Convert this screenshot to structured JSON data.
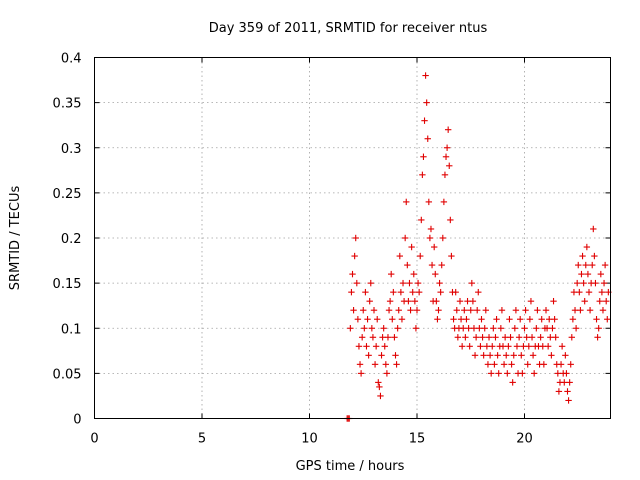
{
  "chart_data": {
    "type": "scatter",
    "title": "Day 359 of 2011, SRMTID for receiver ntus",
    "xlabel": "GPS time / hours",
    "ylabel": "SRMTID / TECUs",
    "xlim": [
      0,
      24
    ],
    "ylim": [
      0,
      0.4
    ],
    "x_ticks": [
      0,
      5,
      10,
      15,
      20
    ],
    "y_ticks": [
      0,
      0.05,
      0.1,
      0.15,
      0.2,
      0.25,
      0.3,
      0.35,
      0.4
    ],
    "x_tick_labels": [
      "0",
      "5",
      "10",
      "15",
      "20"
    ],
    "y_tick_labels": [
      "0",
      "0.05",
      "0.1",
      "0.15",
      "0.2",
      "0.25",
      "0.3",
      "0.35",
      "0.4"
    ],
    "grid": true,
    "marker": "+",
    "marker_color": "#e00000",
    "series": [
      {
        "name": "SRMTID",
        "points": [
          [
            11.75,
            0.0
          ],
          [
            11.8,
            0.0
          ],
          [
            11.85,
            0.0
          ],
          [
            11.9,
            0.1
          ],
          [
            11.95,
            0.14
          ],
          [
            12.0,
            0.16
          ],
          [
            12.05,
            0.12
          ],
          [
            12.1,
            0.18
          ],
          [
            12.15,
            0.2
          ],
          [
            12.2,
            0.15
          ],
          [
            12.25,
            0.11
          ],
          [
            12.3,
            0.08
          ],
          [
            12.35,
            0.06
          ],
          [
            12.4,
            0.05
          ],
          [
            12.45,
            0.09
          ],
          [
            12.5,
            0.12
          ],
          [
            12.55,
            0.1
          ],
          [
            12.6,
            0.14
          ],
          [
            12.65,
            0.08
          ],
          [
            12.7,
            0.11
          ],
          [
            12.75,
            0.07
          ],
          [
            12.8,
            0.13
          ],
          [
            12.85,
            0.15
          ],
          [
            12.9,
            0.1
          ],
          [
            12.95,
            0.09
          ],
          [
            13.0,
            0.12
          ],
          [
            13.05,
            0.06
          ],
          [
            13.1,
            0.08
          ],
          [
            13.15,
            0.11
          ],
          [
            13.2,
            0.04
          ],
          [
            13.25,
            0.035
          ],
          [
            13.3,
            0.025
          ],
          [
            13.35,
            0.07
          ],
          [
            13.4,
            0.09
          ],
          [
            13.45,
            0.1
          ],
          [
            13.5,
            0.08
          ],
          [
            13.55,
            0.06
          ],
          [
            13.6,
            0.05
          ],
          [
            13.65,
            0.09
          ],
          [
            13.7,
            0.12
          ],
          [
            13.75,
            0.13
          ],
          [
            13.8,
            0.16
          ],
          [
            13.85,
            0.11
          ],
          [
            13.9,
            0.14
          ],
          [
            13.95,
            0.09
          ],
          [
            14.0,
            0.07
          ],
          [
            14.05,
            0.06
          ],
          [
            14.1,
            0.1
          ],
          [
            14.15,
            0.12
          ],
          [
            14.2,
            0.18
          ],
          [
            14.25,
            0.14
          ],
          [
            14.3,
            0.11
          ],
          [
            14.35,
            0.15
          ],
          [
            14.4,
            0.13
          ],
          [
            14.45,
            0.2
          ],
          [
            14.5,
            0.24
          ],
          [
            14.55,
            0.17
          ],
          [
            14.6,
            0.13
          ],
          [
            14.65,
            0.15
          ],
          [
            14.7,
            0.12
          ],
          [
            14.75,
            0.19
          ],
          [
            14.8,
            0.14
          ],
          [
            14.85,
            0.16
          ],
          [
            14.9,
            0.13
          ],
          [
            14.95,
            0.1
          ],
          [
            15.0,
            0.12
          ],
          [
            15.05,
            0.15
          ],
          [
            15.1,
            0.14
          ],
          [
            15.15,
            0.18
          ],
          [
            15.2,
            0.22
          ],
          [
            15.25,
            0.27
          ],
          [
            15.3,
            0.29
          ],
          [
            15.35,
            0.33
          ],
          [
            15.4,
            0.38
          ],
          [
            15.45,
            0.35
          ],
          [
            15.5,
            0.31
          ],
          [
            15.55,
            0.24
          ],
          [
            15.6,
            0.2
          ],
          [
            15.65,
            0.21
          ],
          [
            15.7,
            0.17
          ],
          [
            15.75,
            0.13
          ],
          [
            15.8,
            0.19
          ],
          [
            15.85,
            0.16
          ],
          [
            15.9,
            0.13
          ],
          [
            15.95,
            0.11
          ],
          [
            16.0,
            0.12
          ],
          [
            16.05,
            0.15
          ],
          [
            16.1,
            0.14
          ],
          [
            16.15,
            0.17
          ],
          [
            16.2,
            0.2
          ],
          [
            16.25,
            0.24
          ],
          [
            16.3,
            0.27
          ],
          [
            16.35,
            0.29
          ],
          [
            16.4,
            0.3
          ],
          [
            16.45,
            0.32
          ],
          [
            16.5,
            0.28
          ],
          [
            16.55,
            0.22
          ],
          [
            16.6,
            0.18
          ],
          [
            16.65,
            0.14
          ],
          [
            16.7,
            0.11
          ],
          [
            16.75,
            0.1
          ],
          [
            16.8,
            0.14
          ],
          [
            16.85,
            0.12
          ],
          [
            16.9,
            0.09
          ],
          [
            16.95,
            0.1
          ],
          [
            17.0,
            0.13
          ],
          [
            17.05,
            0.11
          ],
          [
            17.1,
            0.08
          ],
          [
            17.15,
            0.1
          ],
          [
            17.2,
            0.12
          ],
          [
            17.25,
            0.09
          ],
          [
            17.3,
            0.11
          ],
          [
            17.35,
            0.13
          ],
          [
            17.4,
            0.1
          ],
          [
            17.45,
            0.08
          ],
          [
            17.5,
            0.12
          ],
          [
            17.55,
            0.15
          ],
          [
            17.6,
            0.13
          ],
          [
            17.65,
            0.1
          ],
          [
            17.7,
            0.07
          ],
          [
            17.75,
            0.09
          ],
          [
            17.8,
            0.12
          ],
          [
            17.85,
            0.14
          ],
          [
            17.9,
            0.1
          ],
          [
            17.95,
            0.08
          ],
          [
            18.0,
            0.11
          ],
          [
            18.05,
            0.09
          ],
          [
            18.1,
            0.07
          ],
          [
            18.15,
            0.1
          ],
          [
            18.2,
            0.12
          ],
          [
            18.25,
            0.08
          ],
          [
            18.3,
            0.06
          ],
          [
            18.35,
            0.09
          ],
          [
            18.4,
            0.07
          ],
          [
            18.45,
            0.05
          ],
          [
            18.5,
            0.08
          ],
          [
            18.55,
            0.1
          ],
          [
            18.6,
            0.06
          ],
          [
            18.65,
            0.09
          ],
          [
            18.7,
            0.11
          ],
          [
            18.75,
            0.07
          ],
          [
            18.8,
            0.05
          ],
          [
            18.85,
            0.08
          ],
          [
            18.9,
            0.1
          ],
          [
            18.95,
            0.12
          ],
          [
            19.0,
            0.08
          ],
          [
            19.05,
            0.06
          ],
          [
            19.1,
            0.09
          ],
          [
            19.15,
            0.07
          ],
          [
            19.2,
            0.05
          ],
          [
            19.25,
            0.08
          ],
          [
            19.3,
            0.11
          ],
          [
            19.35,
            0.09
          ],
          [
            19.4,
            0.06
          ],
          [
            19.45,
            0.04
          ],
          [
            19.5,
            0.07
          ],
          [
            19.55,
            0.1
          ],
          [
            19.6,
            0.12
          ],
          [
            19.65,
            0.08
          ],
          [
            19.7,
            0.05
          ],
          [
            19.75,
            0.09
          ],
          [
            19.8,
            0.11
          ],
          [
            19.85,
            0.07
          ],
          [
            19.9,
            0.05
          ],
          [
            19.95,
            0.08
          ],
          [
            20.0,
            0.1
          ],
          [
            20.05,
            0.12
          ],
          [
            20.1,
            0.09
          ],
          [
            20.15,
            0.06
          ],
          [
            20.2,
            0.08
          ],
          [
            20.25,
            0.11
          ],
          [
            20.3,
            0.13
          ],
          [
            20.35,
            0.09
          ],
          [
            20.4,
            0.07
          ],
          [
            20.45,
            0.05
          ],
          [
            20.5,
            0.08
          ],
          [
            20.55,
            0.1
          ],
          [
            20.6,
            0.12
          ],
          [
            20.65,
            0.08
          ],
          [
            20.7,
            0.06
          ],
          [
            20.75,
            0.09
          ],
          [
            20.8,
            0.11
          ],
          [
            20.85,
            0.08
          ],
          [
            20.9,
            0.06
          ],
          [
            20.95,
            0.1
          ],
          [
            21.0,
            0.12
          ],
          [
            21.05,
            0.1
          ],
          [
            21.1,
            0.08
          ],
          [
            21.15,
            0.11
          ],
          [
            21.2,
            0.09
          ],
          [
            21.25,
            0.07
          ],
          [
            21.3,
            0.1
          ],
          [
            21.35,
            0.13
          ],
          [
            21.4,
            0.11
          ],
          [
            21.45,
            0.09
          ],
          [
            21.5,
            0.06
          ],
          [
            21.55,
            0.05
          ],
          [
            21.6,
            0.03
          ],
          [
            21.65,
            0.04
          ],
          [
            21.7,
            0.06
          ],
          [
            21.75,
            0.08
          ],
          [
            21.8,
            0.05
          ],
          [
            21.85,
            0.04
          ],
          [
            21.9,
            0.07
          ],
          [
            21.95,
            0.05
          ],
          [
            22.0,
            0.03
          ],
          [
            22.05,
            0.02
          ],
          [
            22.1,
            0.04
          ],
          [
            22.15,
            0.06
          ],
          [
            22.2,
            0.09
          ],
          [
            22.25,
            0.11
          ],
          [
            22.3,
            0.14
          ],
          [
            22.35,
            0.12
          ],
          [
            22.4,
            0.1
          ],
          [
            22.45,
            0.15
          ],
          [
            22.5,
            0.17
          ],
          [
            22.55,
            0.14
          ],
          [
            22.6,
            0.12
          ],
          [
            22.65,
            0.16
          ],
          [
            22.7,
            0.18
          ],
          [
            22.75,
            0.15
          ],
          [
            22.8,
            0.13
          ],
          [
            22.85,
            0.17
          ],
          [
            22.9,
            0.19
          ],
          [
            22.95,
            0.16
          ],
          [
            23.0,
            0.14
          ],
          [
            23.05,
            0.12
          ],
          [
            23.1,
            0.15
          ],
          [
            23.15,
            0.17
          ],
          [
            23.2,
            0.21
          ],
          [
            23.25,
            0.18
          ],
          [
            23.3,
            0.15
          ],
          [
            23.35,
            0.11
          ],
          [
            23.4,
            0.09
          ],
          [
            23.45,
            0.1
          ],
          [
            23.5,
            0.13
          ],
          [
            23.55,
            0.16
          ],
          [
            23.6,
            0.14
          ],
          [
            23.65,
            0.12
          ],
          [
            23.7,
            0.15
          ],
          [
            23.75,
            0.17
          ],
          [
            23.8,
            0.13
          ],
          [
            23.85,
            0.11
          ],
          [
            23.9,
            0.14
          ]
        ]
      }
    ]
  }
}
